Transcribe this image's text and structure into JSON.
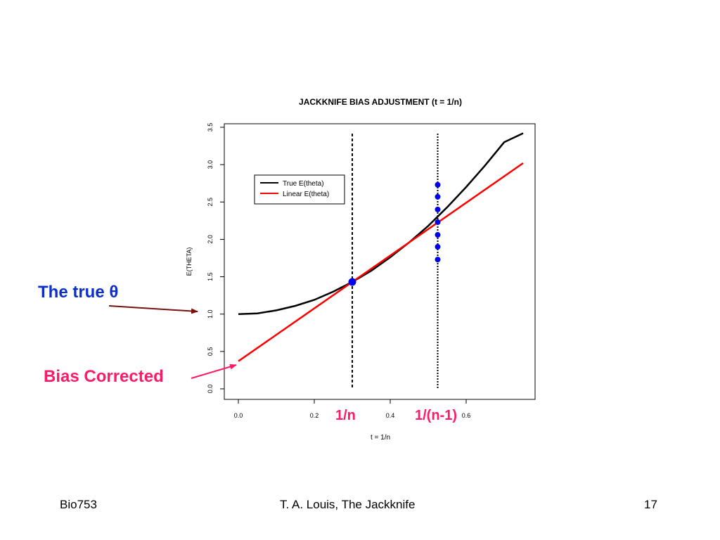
{
  "chart_data": {
    "type": "line",
    "title": "JACKKNIFE BIAS ADJUSTMENT (t = 1/n)",
    "xlabel": "t = 1/n",
    "ylabel": "E(THETA)",
    "xlim": [
      0.0,
      0.75
    ],
    "ylim": [
      0.0,
      3.5
    ],
    "x_ticks": [
      "0.0",
      "0.2",
      "0.4",
      "0.6"
    ],
    "x_tick_values": [
      0.0,
      0.2,
      0.4,
      0.6
    ],
    "y_ticks": [
      "0.0",
      "0.5",
      "1.0",
      "1.5",
      "2.0",
      "2.5",
      "3.0",
      "3.5"
    ],
    "y_tick_values": [
      0.0,
      0.5,
      1.0,
      1.5,
      2.0,
      2.5,
      3.0,
      3.5
    ],
    "grid": false,
    "legend_position": "upper-left",
    "series": [
      {
        "name": "True E(theta)",
        "color": "#000000",
        "x": [
          0.0,
          0.05,
          0.1,
          0.15,
          0.2,
          0.25,
          0.3,
          0.35,
          0.4,
          0.45,
          0.5,
          0.55,
          0.6,
          0.65,
          0.7,
          0.75
        ],
        "y": [
          1.0,
          1.01,
          1.05,
          1.11,
          1.19,
          1.3,
          1.43,
          1.58,
          1.76,
          1.96,
          2.18,
          2.43,
          2.7,
          2.99,
          3.3,
          3.42
        ]
      },
      {
        "name": "Linear E(theta)",
        "color": "#ff0000",
        "x": [
          0.0,
          0.75
        ],
        "y": [
          0.37,
          3.02
        ]
      }
    ],
    "vlines": [
      {
        "x": 0.3,
        "style": "dashed"
      },
      {
        "x": 0.525,
        "style": "dotted"
      }
    ],
    "points": {
      "color": "#0000ee",
      "items": [
        {
          "x": 0.3,
          "y": 1.43,
          "size": "large"
        },
        {
          "x": 0.525,
          "y": 1.73
        },
        {
          "x": 0.525,
          "y": 1.9
        },
        {
          "x": 0.525,
          "y": 2.06
        },
        {
          "x": 0.525,
          "y": 2.23
        },
        {
          "x": 0.525,
          "y": 2.4
        },
        {
          "x": 0.525,
          "y": 2.57
        },
        {
          "x": 0.525,
          "y": 2.73
        }
      ]
    }
  },
  "annotations": {
    "true_theta": {
      "text": "The true θ",
      "color": "#0b2fcc"
    },
    "bias_corrected": {
      "text": "Bias Corrected",
      "color": "#ff1a66"
    },
    "one_over_n": {
      "text": "1/n",
      "color": "#ff1a66"
    },
    "one_over_n_minus_1": {
      "text": "1/(n-1)",
      "color": "#ff1a66"
    },
    "arrow_true_color": "#7a1010",
    "arrow_bias_color": "#ff1a66"
  },
  "footer": {
    "left": "Bio753",
    "center": "T. A. Louis, The Jackknife",
    "right": "17"
  }
}
